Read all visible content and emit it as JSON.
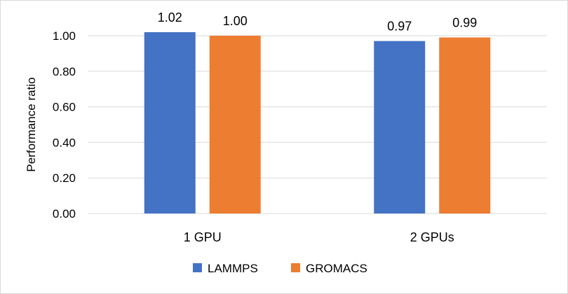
{
  "chart_data": {
    "type": "bar",
    "categories": [
      "1 GPU",
      "2 GPUs"
    ],
    "series": [
      {
        "name": "LAMMPS",
        "values": [
          1.02,
          0.97
        ],
        "labels": [
          "1.02",
          "0.97"
        ],
        "color": "#4472c4"
      },
      {
        "name": "GROMACS",
        "values": [
          1.0,
          0.99
        ],
        "labels": [
          "1.00",
          "0.99"
        ],
        "color": "#ed7d31"
      }
    ],
    "title": "",
    "xlabel": "",
    "ylabel": "Performance ratio",
    "ylim": [
      0,
      1.0
    ],
    "yticks": [
      "0.00",
      "0.20",
      "0.40",
      "0.60",
      "0.80",
      "1.00"
    ],
    "grid": true,
    "legend_position": "bottom",
    "grid_color": "#d9d9d9"
  }
}
